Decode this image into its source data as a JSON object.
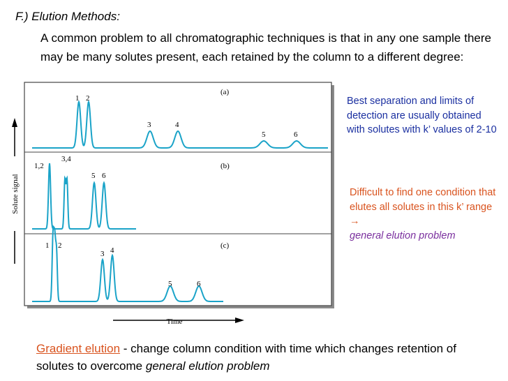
{
  "heading": "F.) Elution Methods:",
  "intro": "A common problem to all chromatographic techniques is that in any one sample there may be many solutes present, each retained by the column to a different degree:",
  "figure": {
    "y_axis_label": "Solute signal",
    "x_axis_label": "Time",
    "panels": [
      {
        "id": "(a)",
        "peak_labels": [
          "1",
          "2",
          "3",
          "4",
          "5",
          "6"
        ]
      },
      {
        "id": "(b)",
        "peak_labels": [
          "1,2",
          "3,4",
          "5",
          "6"
        ]
      },
      {
        "id": "(c)",
        "peak_labels": [
          "1",
          "2",
          "3",
          "4",
          "5",
          "6"
        ]
      }
    ],
    "trace_color": "#1aa3c8"
  },
  "note1": "Best separation and limits of detection are usually obtained with solutes with k’ values of 2-10",
  "note2": {
    "text": "Difficult to find one condition that elutes all solutes in this k’ range",
    "arrow": "→",
    "emphasis": "general elution problem"
  },
  "bottom": {
    "link": "Gradient elution",
    "text": " - change column condition with time which changes retention of solutes to overcome ",
    "emphasis": "general elution problem"
  }
}
